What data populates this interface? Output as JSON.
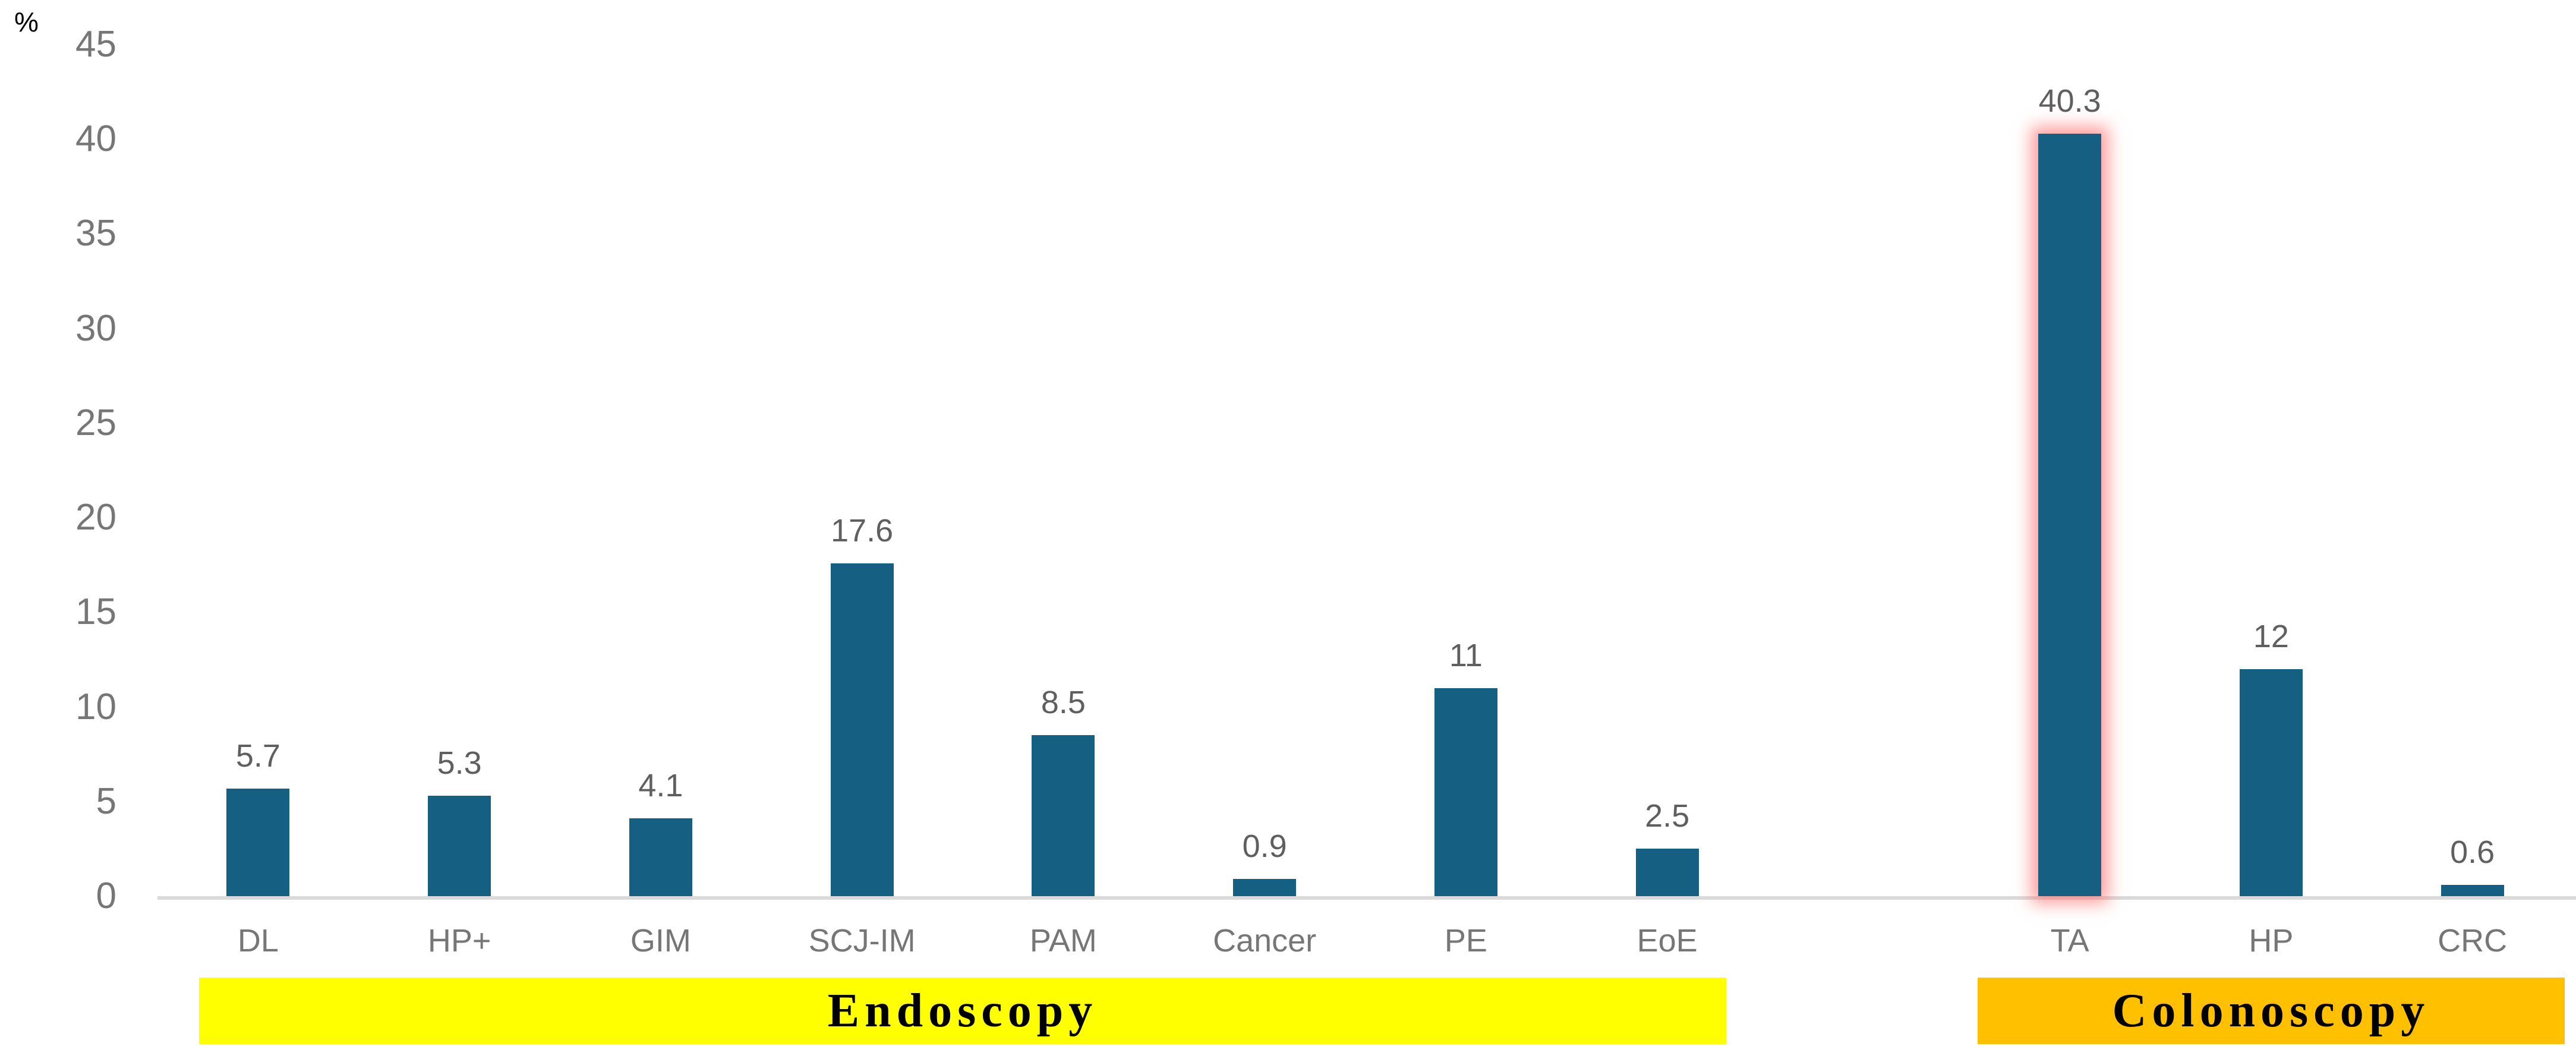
{
  "chart_data": {
    "type": "bar",
    "title": "",
    "ylabel": "%",
    "xlabel": "",
    "ylim": [
      0,
      45
    ],
    "yticks": [
      45,
      40,
      35,
      30,
      25,
      20,
      15,
      10,
      5,
      0
    ],
    "grid": false,
    "legend": false,
    "categories": [
      "DL",
      "HP+",
      "GIM",
      "SCJ-IM",
      "PAM",
      "Cancer",
      "PE",
      "EoE",
      "",
      "TA",
      "HP",
      "CRC"
    ],
    "values": [
      5.7,
      5.3,
      4.1,
      17.6,
      8.5,
      0.9,
      11,
      2.5,
      null,
      40.3,
      12,
      0.6
    ],
    "value_labels": [
      "5.7",
      "5.3",
      "4.1",
      "17.6",
      "8.5",
      "0.9",
      "11",
      "2.5",
      "",
      "40.3",
      "12",
      "0.6"
    ],
    "highlighted_category": "TA",
    "groups": [
      {
        "id": "endoscopy",
        "label": "Endoscopy",
        "start_slot": 0,
        "end_slot": 7,
        "fill": "#FFFF00"
      },
      {
        "id": "colonoscopy",
        "label": "Colonoscopy",
        "start_slot": 9,
        "end_slot": 11,
        "fill": "#FFC000"
      }
    ],
    "colors": {
      "bar": "#156082",
      "axis_line": "#DADADA",
      "tick_label": "#767676",
      "value_label": "#5F5F5F",
      "category_label": "#767676",
      "unit_label": "#000000",
      "group_border": "#0D4961",
      "group_text": "#000000",
      "highlight_glow": "#FF6969"
    }
  }
}
